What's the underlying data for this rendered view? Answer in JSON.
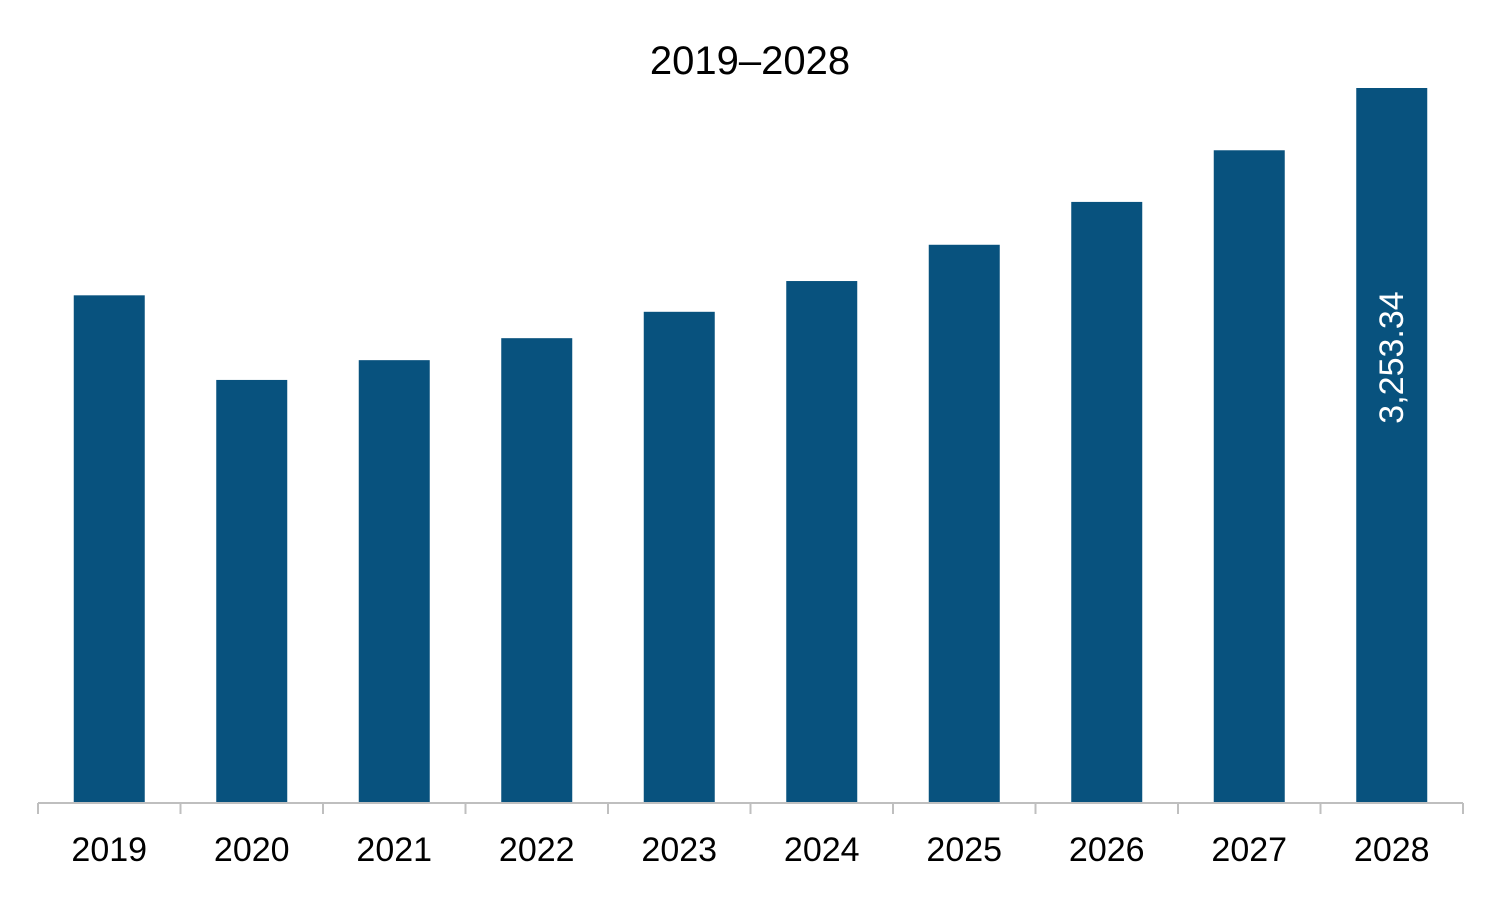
{
  "chart_data": {
    "type": "bar",
    "title": "2019–2028",
    "xlabel": "",
    "ylabel": "",
    "categories": [
      "2019",
      "2020",
      "2021",
      "2022",
      "2023",
      "2024",
      "2025",
      "2026",
      "2027",
      "2028"
    ],
    "values": [
      2310,
      1925,
      2015,
      2115,
      2235,
      2375,
      2540,
      2735,
      2970,
      3253.34
    ],
    "data_labels": [
      "",
      "",
      "",
      "",
      "",
      "",
      "",
      "",
      "",
      "3,253.34"
    ],
    "ylim": [
      0,
      3253.34
    ],
    "grid": false,
    "legend": "none",
    "bar_color": "#08527e",
    "label_color": "#ffffff"
  }
}
